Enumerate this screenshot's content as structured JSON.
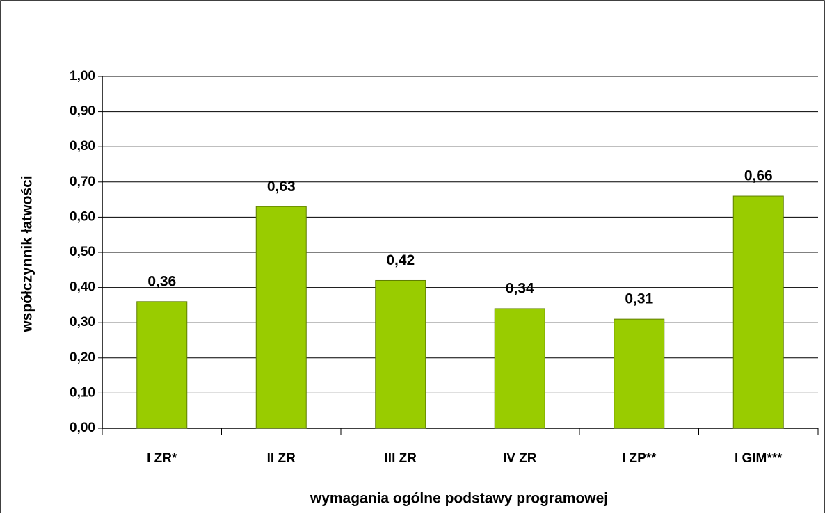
{
  "chart_data": {
    "type": "bar",
    "categories": [
      "I ZR*",
      "II ZR",
      "III ZR",
      "IV ZR",
      "I ZP**",
      "I GIM***"
    ],
    "values": [
      0.36,
      0.63,
      0.42,
      0.34,
      0.31,
      0.66
    ],
    "value_labels": [
      "0,36",
      "0,63",
      "0,42",
      "0,34",
      "0,31",
      "0,66"
    ],
    "color": "#99cc00",
    "x_label": "wymagania ogólne podstawy programowej",
    "y_label": "współczynnik łatwości",
    "ylim": [
      0,
      1
    ],
    "yticks": [
      {
        "value": 0,
        "label": "0,00"
      },
      {
        "value": 0.1,
        "label": "0,10"
      },
      {
        "value": 0.2,
        "label": "0,20"
      },
      {
        "value": 0.3,
        "label": "0,30"
      },
      {
        "value": 0.4,
        "label": "0,40"
      },
      {
        "value": 0.5,
        "label": "0,50"
      },
      {
        "value": 0.6,
        "label": "0,60"
      },
      {
        "value": 0.7,
        "label": "0,70"
      },
      {
        "value": 0.8,
        "label": "0,80"
      },
      {
        "value": 0.9,
        "label": "0,90"
      },
      {
        "value": 1,
        "label": "1,00"
      }
    ],
    "grid": true
  }
}
